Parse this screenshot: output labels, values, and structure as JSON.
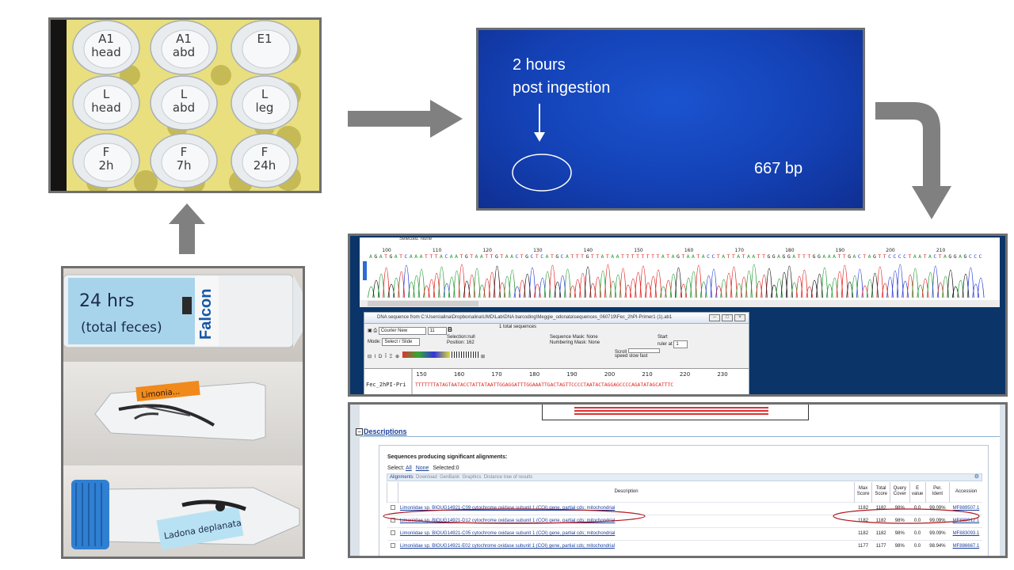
{
  "rack": {
    "caps": [
      {
        "label": "A1\nhead"
      },
      {
        "label": "A1\nabd"
      },
      {
        "label": "E1"
      },
      {
        "label": "L\nhead"
      },
      {
        "label": "L\nabd"
      },
      {
        "label": "L\nleg"
      },
      {
        "label": "F\n2h"
      },
      {
        "label": "F\n7h"
      },
      {
        "label": "F\n24h"
      }
    ]
  },
  "gel": {
    "line1": "2 hours",
    "line2": "post ingestion",
    "band_size": "667 bp"
  },
  "falcon": {
    "label1_line1": "24 hrs",
    "label1_line2": "(total feces)",
    "brand": "Falcon",
    "label2": "Limonia...",
    "label3": "Ladona deplanata"
  },
  "chromatogram": {
    "selected_text": "Selected: None",
    "ruler_numbers": [
      "100",
      "110",
      "120",
      "130",
      "140",
      "150",
      "160",
      "170",
      "180",
      "190",
      "200",
      "210"
    ],
    "sequence": "AGATGATCAAATTTACAATGTAATTGTAACTGCTCATGCATTTGTTATAATTTTTTTTATAGTAATACCTATTATAATTGGAGGATTTGGAAATTGACTAGTTCCCCTAATACTAGGAGCCC",
    "colors": {
      "A": "#1e9a2e",
      "C": "#2a3ed6",
      "G": "#111111",
      "T": "#e0201d"
    }
  },
  "editor": {
    "title": "DNA sequence from C:\\Users\\alina\\Dropbox\\alina\\UMD\\Lab\\DNA barcoding\\Meggie_odonata\\sequences_060719\\Fec_2hPI-Primer1 (1).ab1",
    "font": "Courier New",
    "size": "11",
    "bold": "B",
    "total": "1 total sequences",
    "mode_label": "Mode:",
    "mode_value": "Select / Slide",
    "selection": "Selection:null",
    "position": "Position:  162",
    "seq_mask": "Sequence Mask: None",
    "num_mask": "Numbering Mask: None",
    "start_label": "Start",
    "ruler_at": "ruler at",
    "ruler_value": "1",
    "scroll_label": "Scroll",
    "speed": "speed  slow",
    "fast": "fast",
    "ruler_numbers": [
      "150",
      "160",
      "170",
      "180",
      "190",
      "200",
      "210",
      "220",
      "230"
    ],
    "seq_name": "Fec_2hPI-Pri",
    "sequence": "TTTTTTTATAGTAATACCTATTATAATTGGAGGATTTGGAAATTGACTAGTTCCCCTAATACTAGGAGCCCCAGATATAGCATTTC"
  },
  "blast": {
    "descriptions_link": "Descriptions",
    "toggle": "−",
    "title": "Sequences producing significant alignments:",
    "select_label": "Select:",
    "select_all": "All",
    "select_none": "None",
    "selected": "Selected:0",
    "toolbar": {
      "alignments": "Alignments",
      "download": "Download",
      "genbank": "GenBank",
      "graphics": "Graphics",
      "tree": "Distance tree of results"
    },
    "columns": [
      "Description",
      "Max\nScore",
      "Total\nScore",
      "Query\nCover",
      "E\nvalue",
      "Per.\nIdent",
      "Accession"
    ],
    "rows": [
      {
        "desc": "Limoniidae sp. BIOUG14921-C09 cytochrome oxidase subunit 1 (COI) gene, partial cds; mitochondrial",
        "max": "1182",
        "total": "1182",
        "cover": "98%",
        "e": "0.0",
        "ident": "99.09%",
        "acc": "MF889507.1"
      },
      {
        "desc": "Limoniidae sp. BIOUG14921-D12 cytochrome oxidase subunit 1 (COI) gene, partial cds; mitochondrial",
        "max": "1182",
        "total": "1182",
        "cover": "98%",
        "e": "0.0",
        "ident": "99.09%",
        "acc": "MF888012.1"
      },
      {
        "desc": "Limoniidae sp. BIOUG14921-C05 cytochrome oxidase subunit 1 (COI) gene, partial cds; mitochondrial",
        "max": "1182",
        "total": "1182",
        "cover": "98%",
        "e": "0.0",
        "ident": "99.09%",
        "acc": "MF883093.1"
      },
      {
        "desc": "Limoniidae sp. BIOUG14921-E02 cytochrome oxidase subunit 1 (COI) gene, partial cds; mitochondrial",
        "max": "1177",
        "total": "1177",
        "cover": "98%",
        "e": "0.0",
        "ident": "98.94%",
        "acc": "MF886667.1"
      }
    ]
  },
  "colors": {
    "arrow": "#808080",
    "gel_blue": "#1a4bc6",
    "highlight_red": "#b3141b",
    "link_blue": "#1a3f9a"
  }
}
